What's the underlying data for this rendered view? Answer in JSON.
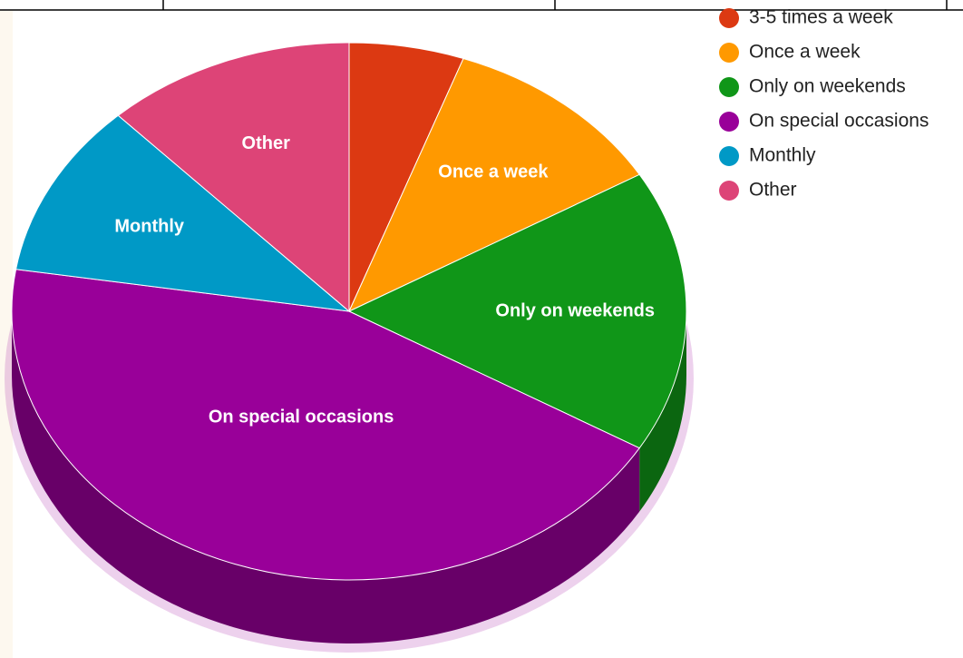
{
  "chart_data": {
    "type": "pie",
    "style": "3d",
    "start": "top, clockwise",
    "categories": [
      "3-5 times a week",
      "Once a week",
      "Only on weekends",
      "On special occasions",
      "Monthly",
      "Other"
    ],
    "values": [
      5.5,
      11.0,
      17.0,
      44.0,
      10.5,
      12.0
    ],
    "colors": [
      "#dc3912",
      "#ff9900",
      "#109618",
      "#990099",
      "#0099c6",
      "#dd4477"
    ],
    "slice_labels": [
      "",
      "Once a week",
      "Only on weekends",
      "On special occasions",
      "Monthly",
      "Other"
    ],
    "legend_position": "top-right",
    "legend": [
      {
        "label": "3-5 times a week",
        "color": "#dc3912"
      },
      {
        "label": "Once a week",
        "color": "#ff9900"
      },
      {
        "label": "Only on weekends",
        "color": "#109618"
      },
      {
        "label": "On special occasions",
        "color": "#990099"
      },
      {
        "label": "Monthly",
        "color": "#0099c6"
      },
      {
        "label": "Other",
        "color": "#dd4477"
      }
    ]
  }
}
